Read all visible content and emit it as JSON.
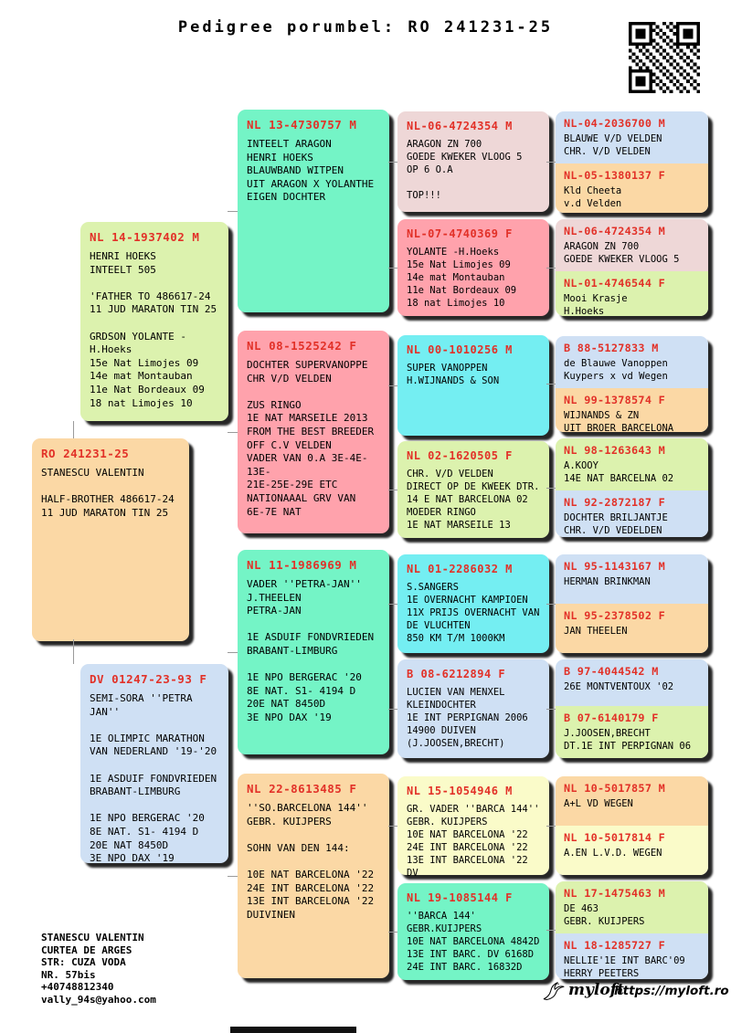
{
  "title": "Pedigree porumbel: RO 241231-25",
  "palette": {
    "ring_red": "#e23128",
    "peach": "#fbd8a5",
    "green": "#dcf2ae",
    "blue": "#cfe0f4",
    "mint": "#74f4c6",
    "pink": "#ffa2ac",
    "rose": "#eed7d7",
    "cyan": "#74eef2",
    "yellow": "#fafbc9"
  },
  "boxes": {
    "ro": {
      "ring": "RO 241231-25",
      "body": "STANESCU VALENTIN\n\nHALF-BROTHER 486617-24\n11 JUD MARATON TIN 25"
    },
    "nl14": {
      "ring": "NL 14-1937402 M",
      "body": "HENRI HOEKS\nINTEELT 505\n\n'FATHER TO 486617-24\n11 JUD MARATON TIN 25\n\nGRDSON YOLANTE -H.Hoeks\n15e Nat Limojes 09\n14e mat Montauban\n11e Nat Bordeaux 09\n18 nat Limojes 10"
    },
    "dv": {
      "ring": "DV 01247-23-93 F",
      "body": "SEMI-SORA ''PETRA JAN''\n\n1E OLIMPIC MARATHON\nVAN NEDERLAND '19-'20\n\n1E ASDUIF FONDVRIEDEN\nBRABANT-LIMBURG\n\n1E NPO BERGERAC '20\n8E NAT. S1- 4194 D\n20E NAT 8450D\n3E NPO DAX '19"
    },
    "nl13": {
      "ring": "NL 13-4730757 M",
      "body": "INTEELT ARAGON\nHENRI HOEKS\nBLAUWBAND WITPEN\nUIT ARAGON X YOLANTHE\nEIGEN DOCHTER"
    },
    "nl08": {
      "ring": "NL 08-1525242 F",
      "body": "DOCHTER SUPERVANOPPE\nCHR V/D VELDEN\n\nZUS RINGO\n1E NAT MARSEILE 2013\nFROM THE BEST BREEDER\nOFF C.V VELDEN\nVADER VAN 0.A 3E-4E-13E-\n21E-25E-29E ETC\nNATIONAAAL GRV VAN\n6E-7E NAT"
    },
    "nl11": {
      "ring": "NL 11-1986969 M",
      "body": "VADER ''PETRA-JAN''\nJ.THEELEN\nPETRA-JAN\n\n1E ASDUIF FONDVRIEDEN\nBRABANT-LIMBURG\n\n1E NPO BERGERAC '20\n8E NAT. S1- 4194 D\n20E NAT 8450D\n3E NPO DAX '19"
    },
    "nl22": {
      "ring": "NL 22-8613485 F",
      "body": "''SO.BARCELONA 144''\nGEBR. KUIJPERS\n\nSOHN VAN DEN 144:\n\n10E NAT BARCELONA '22\n24E INT BARCELONA '22\n13E INT BARCELONA '22\nDUIVINEN"
    },
    "nl06a": {
      "ring": "NL-06-4724354 M",
      "body": "ARAGON ZN 700\nGOEDE KWEKER VLOOG 5\nOP 6 O.A\n\nTOP!!!"
    },
    "nl07": {
      "ring": "NL-07-4740369 F",
      "body": "YOLANTE -H.Hoeks\n15e Nat Limojes 09\n14e mat Montauban\n11e Nat Bordeaux 09\n18 nat Limojes 10"
    },
    "nl00": {
      "ring": "NL 00-1010256 M",
      "body": "SUPER VANOPPEN\nH.WIJNANDS & SON"
    },
    "nl02": {
      "ring": "NL 02-1620505 F",
      "body": "CHR. V/D VELDEN\nDIRECT OP DE KWEEK DTR.\n14 E NAT BARCELONA 02\nMOEDER RINGO\n1E NAT MARSEILE 13"
    },
    "nl01m": {
      "ring": "NL 01-2286032 M",
      "body": "S.SANGERS\n1E OVERNACHT KAMPIOEN\n11X PRIJS OVERNACHT VAN\nDE VLUCHTEN\n850 KM T/M 1000KM"
    },
    "b08": {
      "ring": "B 08-6212894 F",
      "body": "LUCIEN VAN MENXEL\nKLEINDOCHTER\n1E INT PERPIGNAN 2006\n14900 DUIVEN\n(J.JOOSEN,BRECHT)"
    },
    "nl15": {
      "ring": "NL 15-1054946 M",
      "body": "GR. VADER ''BARCA 144''\nGEBR. KUIJPERS\n10E NAT BARCELONA '22\n24E INT BARCELONA '22\n13E INT BARCELONA '22 DV"
    },
    "nl19": {
      "ring": "NL 19-1085144 F",
      "body": "''BARCA 144'\nGEBR.KUIJPERS\n10E NAT BARCELONA 4842D\n13E INT BARC. DV 6168D\n24E INT BARC. 16832D"
    },
    "p1a": {
      "ring": "NL-04-2036700 M",
      "body": "BLAUWE V/D VELDEN\nCHR. V/D VELDEN"
    },
    "p1b": {
      "ring": "NL-05-1380137 F",
      "body": "Kld Cheeta\nv.d Velden"
    },
    "p2a": {
      "ring": "NL-06-4724354 M",
      "body": "ARAGON ZN 700\nGOEDE KWEKER VLOOG 5"
    },
    "p2b": {
      "ring": "NL-01-4746544 F",
      "body": "Mooi Krasje\nH.Hoeks"
    },
    "p3a": {
      "ring": "B 88-5127833 M",
      "body": "de Blauwe Vanoppen\nKuypers x vd Wegen"
    },
    "p3b": {
      "ring": "NL 99-1378574 F",
      "body": "WIJNANDS & ZN\nUIT BROER BARCELONA"
    },
    "p4a": {
      "ring": "NL 98-1263643 M",
      "body": "A.KOOY\n14E NAT BARCELNA 02"
    },
    "p4b": {
      "ring": "NL 92-2872187 F",
      "body": "DOCHTER BRILJANTJE\nCHR. V/D VEDELDEN"
    },
    "p5a": {
      "ring": "NL 95-1143167 M",
      "body": "HERMAN BRINKMAN"
    },
    "p5b": {
      "ring": "NL 95-2378502 F",
      "body": "JAN THEELEN"
    },
    "p6a": {
      "ring": "B 97-4044542 M",
      "body": "26E MONTVENTOUX '02"
    },
    "p6b": {
      "ring": "B 07-6140179 F",
      "body": "J.JOOSEN,BRECHT\nDT.1E INT PERPIGNAN 06"
    },
    "p7a": {
      "ring": "NL 10-5017857 M",
      "body": "A+L VD WEGEN"
    },
    "p7b": {
      "ring": "NL 10-5017814 F",
      "body": "A.EN L.V.D. WEGEN"
    },
    "p8a": {
      "ring": "NL 17-1475463 M",
      "body": "DE 463\nGEBR. KUIJPERS"
    },
    "p8b": {
      "ring": "NL 18-1285727 F",
      "body": "NELLIE'1E INT BARC'09\nHERRY PEETERS"
    }
  },
  "footer": {
    "contact": "STANESCU VALENTIN\nCURTEA DE ARGES\nSTR: CUZA VODA\nNR. 57bis\n+40748812340\nvally_94s@yahoo.com",
    "logo_text": "myloft",
    "site_url": "https://myloft.ro"
  },
  "icons": {
    "qr_code": "qr-code",
    "bird_logo": "bird-doodle"
  }
}
